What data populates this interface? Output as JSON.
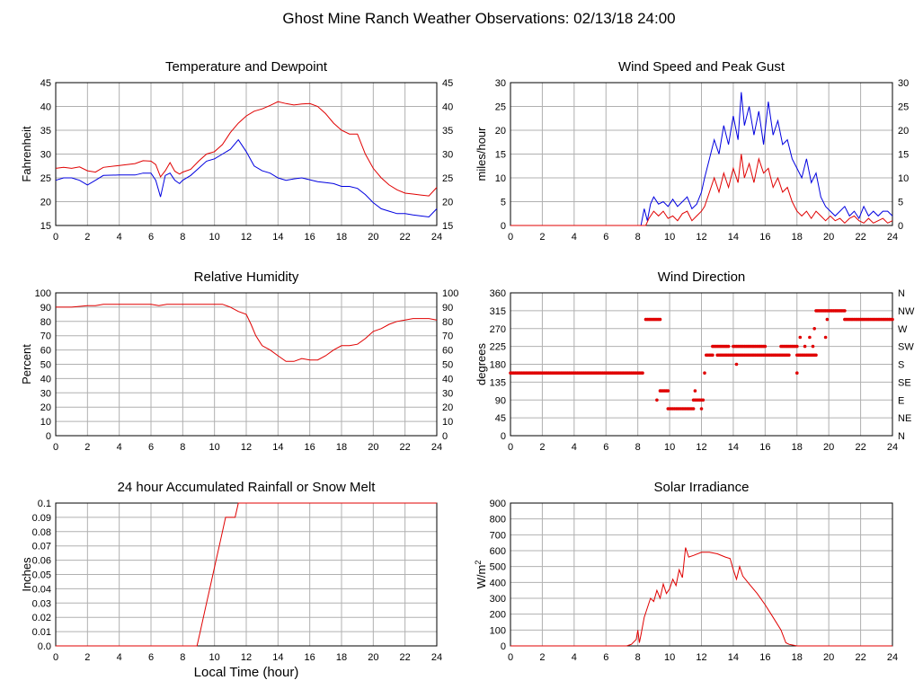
{
  "page": {
    "title": "Ghost Mine Ranch Weather Observations: 02/13/18 24:00"
  },
  "colors": {
    "red": "#e00000",
    "blue": "#0000e0",
    "grid": "#b0b0b0"
  },
  "chart_data": [
    {
      "id": "temperature",
      "type": "line",
      "title": "Temperature and Dewpoint",
      "ylabel": "Fahrenheit",
      "xlabel": "",
      "xlim": [
        0,
        24
      ],
      "ylim": [
        15,
        45
      ],
      "xticks": [
        "0",
        "2",
        "4",
        "6",
        "8",
        "10",
        "12",
        "14",
        "16",
        "18",
        "20",
        "22",
        "24"
      ],
      "yticks": [
        "15",
        "20",
        "25",
        "30",
        "35",
        "40",
        "45"
      ],
      "right_axis": true,
      "series": [
        {
          "color": "#e00000",
          "x": [
            0,
            0.5,
            1,
            1.5,
            2,
            2.5,
            3,
            4,
            5,
            5.5,
            6,
            6.3,
            6.6,
            6.9,
            7.2,
            7.5,
            7.8,
            8,
            8.5,
            9,
            9.5,
            10,
            10.5,
            11,
            11.5,
            12,
            12.5,
            13,
            13.5,
            14,
            14.5,
            15,
            15.5,
            16,
            16.5,
            17,
            17.5,
            18,
            18.5,
            19,
            19.5,
            20,
            20.5,
            21,
            21.5,
            22,
            22.5,
            23,
            23.5,
            24
          ],
          "y": [
            27,
            27.2,
            27,
            27.3,
            26.5,
            26.2,
            27.2,
            27.6,
            28,
            28.6,
            28.5,
            27.8,
            25.2,
            26.5,
            28.2,
            26.4,
            25.8,
            26.2,
            26.8,
            28.5,
            30,
            30.5,
            32,
            34.5,
            36.5,
            38,
            39,
            39.5,
            40.2,
            41,
            40.6,
            40.3,
            40.5,
            40.6,
            40,
            38.5,
            36.5,
            35,
            34.2,
            34.2,
            30,
            27,
            25,
            23.5,
            22.5,
            21.8,
            21.6,
            21.4,
            21.2,
            23
          ]
        },
        {
          "color": "#0000e0",
          "x": [
            0,
            0.5,
            1,
            1.5,
            2,
            2.5,
            3,
            4,
            5,
            5.5,
            6,
            6.3,
            6.6,
            6.9,
            7.2,
            7.5,
            7.8,
            8,
            8.5,
            9,
            9.5,
            10,
            10.5,
            11,
            11.5,
            12,
            12.5,
            13,
            13.5,
            14,
            14.5,
            15,
            15.5,
            16,
            16.5,
            17,
            17.5,
            18,
            18.5,
            19,
            19.5,
            20,
            20.5,
            21,
            21.5,
            22,
            22.5,
            23,
            23.5,
            24
          ],
          "y": [
            24.5,
            25,
            25,
            24.5,
            23.5,
            24.5,
            25.5,
            25.6,
            25.6,
            26,
            26,
            24.5,
            21,
            25.5,
            26,
            24.5,
            23.8,
            24.5,
            25.5,
            27,
            28.5,
            29,
            30,
            31,
            33,
            30.5,
            27.5,
            26.5,
            26,
            25,
            24.5,
            24.8,
            25,
            24.6,
            24.2,
            24,
            23.8,
            23.2,
            23.2,
            22.8,
            21.5,
            19.8,
            18.5,
            18,
            17.5,
            17.5,
            17.2,
            17,
            16.8,
            18.5
          ]
        }
      ]
    },
    {
      "id": "wind_speed",
      "type": "line",
      "title": "Wind Speed and Peak Gust",
      "ylabel": "miles/hour",
      "xlabel": "",
      "xlim": [
        0,
        24
      ],
      "ylim": [
        0,
        30
      ],
      "xticks": [
        "0",
        "2",
        "4",
        "6",
        "8",
        "10",
        "12",
        "14",
        "16",
        "18",
        "20",
        "22",
        "24"
      ],
      "yticks": [
        "0",
        "5",
        "10",
        "15",
        "20",
        "25",
        "30"
      ],
      "right_axis": true,
      "series": [
        {
          "color": "#0000e0",
          "x": [
            0,
            8.2,
            8.4,
            8.6,
            8.8,
            9,
            9.3,
            9.6,
            9.9,
            10.2,
            10.5,
            10.8,
            11.1,
            11.4,
            11.7,
            12,
            12.2,
            12.5,
            12.8,
            13.1,
            13.4,
            13.7,
            14,
            14.3,
            14.5,
            14.7,
            15,
            15.3,
            15.6,
            15.9,
            16.2,
            16.5,
            16.8,
            17.1,
            17.4,
            17.7,
            18,
            18.3,
            18.6,
            18.9,
            19.2,
            19.5,
            19.8,
            20.1,
            20.4,
            20.7,
            21,
            21.3,
            21.6,
            21.9,
            22.2,
            22.5,
            22.8,
            23.1,
            23.4,
            23.7,
            24
          ],
          "y": [
            0,
            0,
            3.5,
            1,
            4.5,
            6,
            4.5,
            5,
            4,
            5.5,
            4,
            5,
            6,
            3.5,
            4.5,
            7,
            10,
            14,
            18,
            15,
            21,
            17,
            23,
            18,
            28,
            21,
            25,
            19,
            24,
            17,
            26,
            19,
            22,
            17,
            18,
            14,
            12,
            10,
            14,
            9,
            11,
            6,
            4,
            3,
            2,
            3,
            4,
            2,
            3,
            1.5,
            4,
            2,
            3,
            2,
            3,
            3,
            2
          ]
        },
        {
          "color": "#e00000",
          "x": [
            0,
            8.5,
            8.7,
            9,
            9.3,
            9.6,
            9.9,
            10.2,
            10.5,
            10.8,
            11.1,
            11.4,
            11.7,
            12,
            12.2,
            12.5,
            12.8,
            13.1,
            13.4,
            13.7,
            14,
            14.3,
            14.5,
            14.7,
            15,
            15.3,
            15.6,
            15.9,
            16.2,
            16.5,
            16.8,
            17.1,
            17.4,
            17.7,
            18,
            18.3,
            18.6,
            18.9,
            19.2,
            19.5,
            19.8,
            20.1,
            20.4,
            20.7,
            21,
            21.3,
            21.6,
            21.9,
            22.2,
            22.5,
            22.8,
            23.1,
            23.4,
            23.7,
            24
          ],
          "y": [
            0,
            0,
            1.5,
            3,
            2,
            3,
            1.5,
            2,
            1,
            2.5,
            3,
            1,
            2,
            3,
            4,
            7,
            10,
            7,
            11,
            8,
            12,
            9,
            15,
            10,
            13,
            9,
            14,
            11,
            12,
            8,
            10,
            7,
            8,
            5,
            3,
            2,
            3,
            1.5,
            3,
            2,
            1,
            2,
            1,
            1.5,
            0.5,
            1.5,
            2,
            1,
            0.5,
            1.5,
            0.5,
            1,
            1.5,
            0.5,
            1
          ]
        }
      ]
    },
    {
      "id": "humidity",
      "type": "line",
      "title": "Relative Humidity",
      "ylabel": "Percent",
      "xlabel": "",
      "xlim": [
        0,
        24
      ],
      "ylim": [
        0,
        100
      ],
      "xticks": [
        "0",
        "2",
        "4",
        "6",
        "8",
        "10",
        "12",
        "14",
        "16",
        "18",
        "20",
        "22",
        "24"
      ],
      "yticks": [
        "0",
        "10",
        "20",
        "30",
        "40",
        "50",
        "60",
        "70",
        "80",
        "90",
        "100"
      ],
      "right_axis": true,
      "series": [
        {
          "color": "#e00000",
          "x": [
            0,
            1,
            2,
            2.5,
            3,
            4,
            5,
            6,
            6.5,
            7,
            8,
            9,
            10,
            10.5,
            11,
            11.5,
            12,
            12.3,
            12.6,
            13,
            13.5,
            14,
            14.5,
            15,
            15.5,
            16,
            16.5,
            17,
            17.5,
            18,
            18.5,
            19,
            19.5,
            20,
            20.5,
            21,
            21.5,
            22,
            22.5,
            23,
            23.5,
            24
          ],
          "y": [
            90,
            90,
            91,
            91,
            92,
            92,
            92,
            92,
            91,
            92,
            92,
            92,
            92,
            92,
            90,
            87,
            85,
            78,
            70,
            63,
            60,
            56,
            52,
            52,
            54,
            53,
            53,
            56,
            60,
            63,
            63,
            64,
            68,
            73,
            75,
            78,
            80,
            81,
            82,
            82,
            82,
            81
          ]
        }
      ]
    },
    {
      "id": "wind_direction",
      "type": "scatter",
      "title": "Wind Direction",
      "ylabel": "degrees",
      "xlabel": "",
      "xlim": [
        0,
        24
      ],
      "ylim": [
        0,
        360
      ],
      "xticks": [
        "0",
        "2",
        "4",
        "6",
        "8",
        "10",
        "12",
        "14",
        "16",
        "18",
        "20",
        "22",
        "24"
      ],
      "yticks": [
        "0",
        "45",
        "90",
        "135",
        "180",
        "225",
        "270",
        "315",
        "360"
      ],
      "right_labels": [
        "N",
        "NE",
        "E",
        "SE",
        "S",
        "SW",
        "W",
        "NW",
        "N"
      ],
      "segments": [
        {
          "x0": 0,
          "x1": 8.3,
          "y": 158
        },
        {
          "x0": 8.5,
          "x1": 9.4,
          "y": 293
        },
        {
          "x0": 9.4,
          "x1": 9.9,
          "y": 113
        },
        {
          "x0": 9.9,
          "x1": 11.5,
          "y": 68
        },
        {
          "x0": 11.5,
          "x1": 12.1,
          "y": 90
        },
        {
          "x0": 12.3,
          "x1": 12.7,
          "y": 203
        },
        {
          "x0": 12.7,
          "x1": 13.7,
          "y": 225
        },
        {
          "x0": 13.0,
          "x1": 17.5,
          "y": 203
        },
        {
          "x0": 14.0,
          "x1": 16.0,
          "y": 225
        },
        {
          "x0": 17.0,
          "x1": 18.0,
          "y": 225
        },
        {
          "x0": 18.0,
          "x1": 19.2,
          "y": 203
        },
        {
          "x0": 19.2,
          "x1": 21.0,
          "y": 315
        },
        {
          "x0": 21.0,
          "x1": 24.0,
          "y": 293
        }
      ],
      "points": [
        {
          "x": 9.2,
          "y": 90
        },
        {
          "x": 11.6,
          "y": 113
        },
        {
          "x": 12.0,
          "y": 68
        },
        {
          "x": 12.2,
          "y": 158
        },
        {
          "x": 14.2,
          "y": 180
        },
        {
          "x": 18.0,
          "y": 158
        },
        {
          "x": 18.2,
          "y": 248
        },
        {
          "x": 18.5,
          "y": 225
        },
        {
          "x": 18.8,
          "y": 248
        },
        {
          "x": 19.0,
          "y": 225
        },
        {
          "x": 19.1,
          "y": 270
        },
        {
          "x": 19.8,
          "y": 248
        },
        {
          "x": 19.9,
          "y": 293
        }
      ]
    },
    {
      "id": "rainfall",
      "type": "line",
      "title": "24 hour Accumulated Rainfall or Snow Melt",
      "ylabel": "Inches",
      "xlabel": "Local Time (hour)",
      "xlim": [
        0,
        24
      ],
      "ylim": [
        0,
        0.1
      ],
      "xticks": [
        "0",
        "2",
        "4",
        "6",
        "8",
        "10",
        "12",
        "14",
        "16",
        "18",
        "20",
        "22",
        "24"
      ],
      "yticks": [
        "0.0",
        "0.01",
        "0.02",
        "0.03",
        "0.04",
        "0.05",
        "0.06",
        "0.07",
        "0.08",
        "0.09",
        "0.1"
      ],
      "right_axis": false,
      "series": [
        {
          "color": "#e00000",
          "x": [
            0,
            8.9,
            9.1,
            9.3,
            9.5,
            9.7,
            9.9,
            10.1,
            10.3,
            10.5,
            10.7,
            11,
            11.3,
            11.5,
            24
          ],
          "y": [
            0,
            0,
            0.01,
            0.02,
            0.03,
            0.04,
            0.05,
            0.06,
            0.07,
            0.08,
            0.09,
            0.09,
            0.09,
            0.1,
            0.1
          ]
        }
      ]
    },
    {
      "id": "solar",
      "type": "line",
      "title": "Solar Irradiance",
      "ylabel": "W/m",
      "ylabel_sup": "2",
      "xlabel": "",
      "xlim": [
        0,
        24
      ],
      "ylim": [
        0,
        900
      ],
      "xticks": [
        "0",
        "2",
        "4",
        "6",
        "8",
        "10",
        "12",
        "14",
        "16",
        "18",
        "20",
        "22",
        "24"
      ],
      "yticks": [
        "0",
        "100",
        "200",
        "300",
        "400",
        "500",
        "600",
        "700",
        "800",
        "900"
      ],
      "right_axis": false,
      "series": [
        {
          "color": "#e00000",
          "x": [
            0,
            7.3,
            7.6,
            7.9,
            8.0,
            8.1,
            8.2,
            8.4,
            8.6,
            8.8,
            9.0,
            9.2,
            9.4,
            9.6,
            9.8,
            10.0,
            10.2,
            10.4,
            10.6,
            10.8,
            11.0,
            11.2,
            11.5,
            12,
            12.5,
            13,
            13.5,
            13.8,
            14.0,
            14.2,
            14.4,
            14.6,
            15,
            15.5,
            16,
            16.5,
            17,
            17.3,
            17.5,
            18,
            24
          ],
          "y": [
            0,
            0,
            10,
            40,
            100,
            20,
            70,
            180,
            240,
            300,
            280,
            350,
            300,
            390,
            330,
            360,
            420,
            380,
            480,
            430,
            620,
            560,
            570,
            590,
            590,
            580,
            560,
            550,
            480,
            420,
            500,
            440,
            390,
            330,
            260,
            180,
            100,
            20,
            10,
            0,
            0
          ]
        }
      ]
    }
  ]
}
